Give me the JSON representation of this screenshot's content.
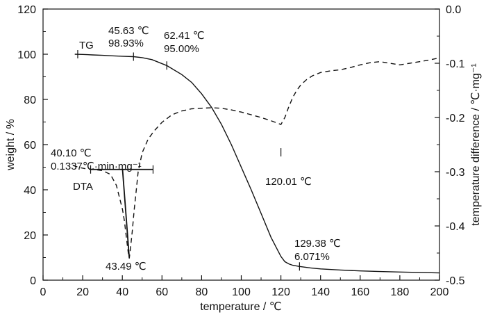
{
  "chart_data": {
    "type": "line",
    "xlabel": "temperature / ℃",
    "ylabel_left": "weight / %",
    "ylabel_right": "temperature difference / ℃·mg⁻¹",
    "xlim": [
      0,
      200
    ],
    "ylim_left": [
      0,
      120
    ],
    "ylim_right": [
      -0.5,
      0.0
    ],
    "x_ticks": [
      "0",
      "20",
      "40",
      "60",
      "80",
      "100",
      "120",
      "140",
      "160",
      "180",
      "200"
    ],
    "y_left_ticks": [
      "0",
      "20",
      "40",
      "60",
      "80",
      "100",
      "120"
    ],
    "y_right_ticks": [
      "-0.5",
      "-0.4",
      "-0.3",
      "-0.2",
      "-0.1",
      "0.0"
    ],
    "grid": false,
    "series": [
      {
        "name": "TG",
        "axis": "left",
        "style": "solid",
        "x": [
          16,
          20,
          25,
          30,
          35,
          40,
          45.63,
          50,
          55,
          62.41,
          70,
          75,
          80,
          85,
          90,
          95,
          100,
          105,
          110,
          115,
          120,
          122,
          124,
          126,
          129.38,
          135,
          140,
          150,
          160,
          170,
          180,
          190,
          200
        ],
        "y": [
          100,
          99.9,
          99.7,
          99.5,
          99.3,
          99.1,
          98.93,
          98.5,
          97.6,
          95.0,
          91.0,
          87.5,
          82.5,
          76.5,
          69,
          60,
          50,
          40,
          29.5,
          19,
          10.5,
          8.2,
          7.2,
          6.6,
          6.071,
          5.4,
          5.0,
          4.5,
          4.1,
          3.8,
          3.6,
          3.4,
          3.2
        ]
      },
      {
        "name": "DTA",
        "axis": "right",
        "style": "dashed",
        "x": [
          15,
          18,
          22,
          26,
          30,
          34,
          37,
          40.1,
          41,
          42,
          43,
          43.49,
          44,
          45,
          46,
          47,
          48,
          50,
          53,
          56,
          60,
          65,
          70,
          75,
          80,
          85,
          90,
          95,
          100,
          105,
          110,
          115,
          118,
          120.01,
          122,
          124,
          126,
          128,
          130,
          133,
          136,
          140,
          145,
          150,
          155,
          160,
          165,
          170,
          175,
          180,
          185,
          190,
          195,
          200
        ],
        "y": [
          -0.288,
          -0.292,
          -0.295,
          -0.296,
          -0.298,
          -0.305,
          -0.325,
          -0.37,
          -0.39,
          -0.42,
          -0.45,
          -0.46,
          -0.445,
          -0.41,
          -0.37,
          -0.335,
          -0.3,
          -0.265,
          -0.24,
          -0.225,
          -0.209,
          -0.195,
          -0.188,
          -0.184,
          -0.183,
          -0.182,
          -0.183,
          -0.186,
          -0.19,
          -0.195,
          -0.2,
          -0.206,
          -0.21,
          -0.213,
          -0.2,
          -0.18,
          -0.163,
          -0.15,
          -0.14,
          -0.13,
          -0.123,
          -0.117,
          -0.114,
          -0.112,
          -0.108,
          -0.103,
          -0.099,
          -0.097,
          -0.1,
          -0.103,
          -0.1,
          -0.097,
          -0.094,
          -0.09
        ]
      }
    ],
    "series_labels": [
      {
        "text": "TG",
        "x": 22,
        "y": 100
      },
      {
        "text": "DTA",
        "x": 21,
        "y": 44
      }
    ],
    "annotations": [
      {
        "lines": [
          "45.63 ℃",
          "98.93%"
        ],
        "x": 45.63,
        "y": 98.93
      },
      {
        "lines": [
          "62.41 ℃",
          "95.00%"
        ],
        "x": 62.41,
        "y": 95.0
      },
      {
        "lines": [
          "40.10 ℃",
          "0.1337℃·min·mg⁻¹"
        ],
        "x": 40.1,
        "y": 49
      },
      {
        "lines": [
          "43.49 ℃"
        ],
        "x": 43.49,
        "y": 10
      },
      {
        "lines": [
          "120.01 ℃"
        ],
        "x": 120.01,
        "y": 56.6
      },
      {
        "lines": [
          "129.38 ℃",
          "6.071%"
        ],
        "x": 129.38,
        "y": 6.071
      }
    ]
  }
}
